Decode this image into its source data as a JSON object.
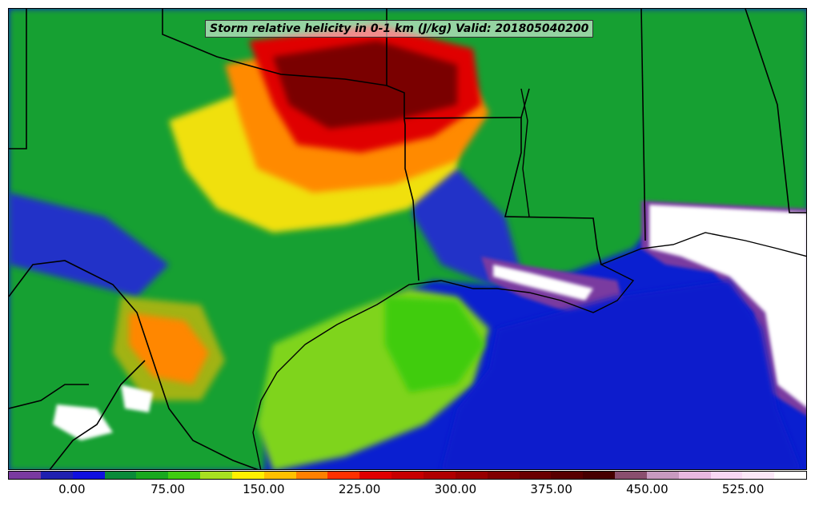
{
  "title": "Storm relative helicity in 0-1 km (J/kg) Valid: 201805040200",
  "colorbar": {
    "min": -50,
    "max": 575,
    "step": 25,
    "tick_labels": [
      "0.00",
      "75.00",
      "150.00",
      "225.00",
      "300.00",
      "375.00",
      "450.00",
      "525.00"
    ],
    "tick_values": [
      0,
      75,
      150,
      225,
      300,
      375,
      450,
      525
    ],
    "colors": [
      "#7a3aa0",
      "#2020b0",
      "#1010e0",
      "#0a8a3a",
      "#19a81e",
      "#3fcc10",
      "#a8e020",
      "#fff000",
      "#ffc000",
      "#ff8000",
      "#ff3000",
      "#e00000",
      "#c80000",
      "#b00000",
      "#980000",
      "#800000",
      "#6a0000",
      "#580000",
      "#460000",
      "#8a4e6e",
      "#c89ac0",
      "#e8b8e0",
      "#f8d8f4",
      "#fbe8f8",
      "#ffffff"
    ]
  },
  "map": {
    "region": "US Gulf Coast",
    "background_fill": "#0a1fd0",
    "boundary_color": "#000000"
  }
}
